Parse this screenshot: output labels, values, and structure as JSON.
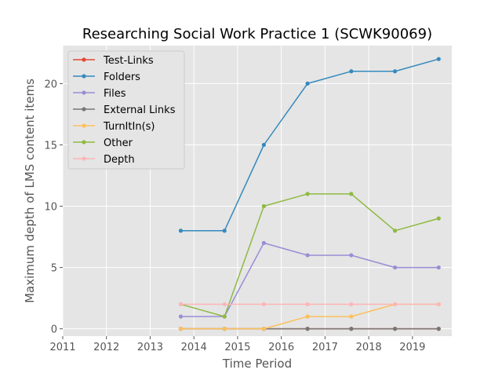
{
  "chart_data": {
    "type": "line",
    "title": "Researching Social Work Practice 1 (SCWK90069)",
    "xlabel": "Time Period",
    "ylabel": "Maximum depth of LMS content items",
    "xlim": [
      2011,
      2019.9
    ],
    "ylim": [
      -0.6,
      23.1
    ],
    "xticks": [
      2011,
      2012,
      2013,
      2014,
      2015,
      2016,
      2017,
      2018,
      2019
    ],
    "yticks": [
      0,
      5,
      10,
      15,
      20
    ],
    "grid": true,
    "legend_position": "upper-left",
    "x": [
      2013.7,
      2014.7,
      2015.6,
      2016.6,
      2017.6,
      2018.6,
      2019.6
    ],
    "series": [
      {
        "name": "Test-Links",
        "color": "#E24A33",
        "values": [
          0,
          0,
          0,
          0,
          0,
          0,
          0
        ]
      },
      {
        "name": "Folders",
        "color": "#348ABD",
        "values": [
          8,
          8,
          15,
          20,
          21,
          21,
          22
        ]
      },
      {
        "name": "Files",
        "color": "#988ED5",
        "values": [
          1,
          1,
          7,
          6,
          6,
          5,
          5
        ]
      },
      {
        "name": "External Links",
        "color": "#777777",
        "values": [
          0,
          0,
          0,
          0,
          0,
          0,
          0
        ]
      },
      {
        "name": "TurnItIn(s)",
        "color": "#FBC15E",
        "values": [
          0,
          0,
          0,
          1,
          1,
          2,
          2
        ]
      },
      {
        "name": "Other",
        "color": "#8EBA42",
        "values": [
          2,
          1,
          10,
          11,
          11,
          8,
          9
        ]
      },
      {
        "name": "Depth",
        "color": "#FFB5B8",
        "values": [
          2,
          2,
          2,
          2,
          2,
          2,
          2
        ]
      }
    ]
  }
}
